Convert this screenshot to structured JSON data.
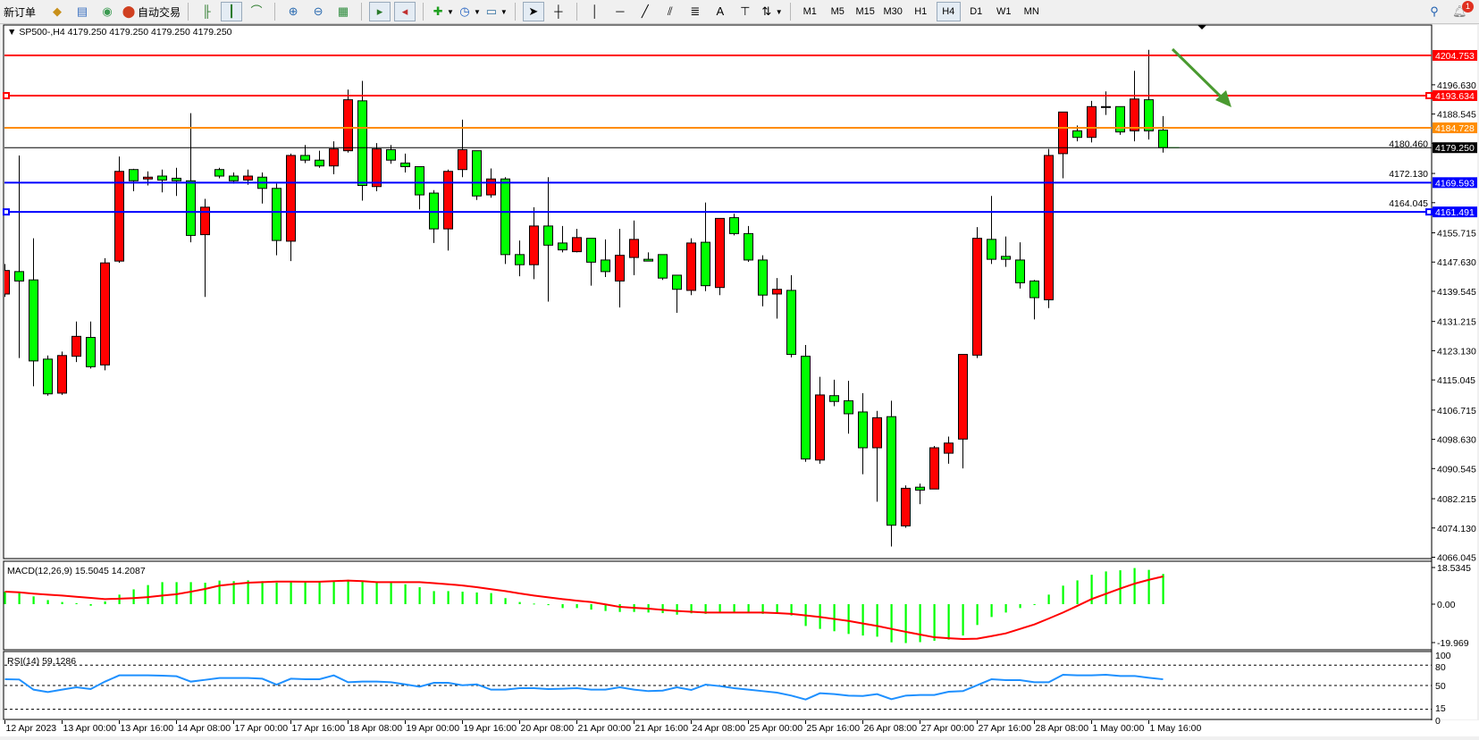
{
  "toolbar": {
    "new_order_label": "新订单",
    "auto_trading_label": "自动交易",
    "icons": [
      "market-watch-icon",
      "data-window-icon",
      "navigator-icon",
      "auto-trading-icon",
      "bar-chart-icon",
      "candlestick-icon",
      "line-chart-icon",
      "zoom-in-icon",
      "zoom-out-icon",
      "tile-windows-icon",
      "auto-scroll-icon",
      "chart-shift-icon",
      "indicators-icon",
      "periods-icon",
      "templates-icon",
      "cursor-icon",
      "crosshair-icon",
      "vertical-line-icon",
      "horizontal-line-icon",
      "trendline-icon",
      "equidistant-channel-icon",
      "fibonacci-icon",
      "text-icon",
      "text-label-icon",
      "arrows-icon"
    ],
    "text_tool_label": "A",
    "periods": [
      "M1",
      "M5",
      "M15",
      "M30",
      "H1",
      "H4",
      "D1",
      "W1",
      "MN"
    ],
    "active_period": "H4",
    "notification_count": "1"
  },
  "chart": {
    "title": "SP500-,H4  4179.250 4179.250 4179.250 4179.250",
    "colors": {
      "bull": "#ff0000",
      "bear": "#00ff00",
      "macd_hist": "#00ff00",
      "macd_signal": "#ff0000",
      "rsi": "#1e90ff",
      "arrow": "#4a9a30"
    },
    "price_ticks": [
      "4196.630",
      "4188.545",
      "4180.460",
      "4172.130",
      "4164.045",
      "4155.715",
      "4147.630",
      "4139.545",
      "4131.215",
      "4123.130",
      "4115.045",
      "4106.715",
      "4098.630",
      "4090.545",
      "4082.215",
      "4074.130",
      "4066.045"
    ],
    "horizontal_lines": [
      {
        "price": "4204.753",
        "color": "#ff0000",
        "label_text": "#ffffff",
        "selected": false
      },
      {
        "price": "4193.634",
        "color": "#ff0000",
        "label_text": "#ffffff",
        "selected": true
      },
      {
        "price": "4184.728",
        "color": "#ff8c00",
        "label_text": "#ffffff",
        "selected": false
      },
      {
        "price": "4179.250",
        "color": "#000000",
        "label_text": "#ffffff",
        "selected": false
      },
      {
        "price": "4169.593",
        "color": "#0000ff",
        "label_text": "#ffffff",
        "selected": false
      },
      {
        "price": "4161.491",
        "color": "#0000ff",
        "label_text": "#ffffff",
        "selected": true
      }
    ],
    "time_labels": [
      {
        "bar": 0,
        "text": "12 Apr 2023"
      },
      {
        "bar": 4,
        "text": "13 Apr 00:00"
      },
      {
        "bar": 8,
        "text": "13 Apr 16:00"
      },
      {
        "bar": 12,
        "text": "14 Apr 08:00"
      },
      {
        "bar": 16,
        "text": "17 Apr 00:00"
      },
      {
        "bar": 20,
        "text": "17 Apr 16:00"
      },
      {
        "bar": 24,
        "text": "18 Apr 08:00"
      },
      {
        "bar": 28,
        "text": "19 Apr 00:00"
      },
      {
        "bar": 32,
        "text": "19 Apr 16:00"
      },
      {
        "bar": 36,
        "text": "20 Apr 08:00"
      },
      {
        "bar": 40,
        "text": "21 Apr 00:00"
      },
      {
        "bar": 44,
        "text": "21 Apr 16:00"
      },
      {
        "bar": 48,
        "text": "24 Apr 08:00"
      },
      {
        "bar": 52,
        "text": "25 Apr 00:00"
      },
      {
        "bar": 56,
        "text": "25 Apr 16:00"
      },
      {
        "bar": 60,
        "text": "26 Apr 08:00"
      },
      {
        "bar": 64,
        "text": "27 Apr 00:00"
      },
      {
        "bar": 68,
        "text": "27 Apr 16:00"
      },
      {
        "bar": 72,
        "text": "28 Apr 08:00"
      },
      {
        "bar": 76,
        "text": "1 May 00:00"
      },
      {
        "bar": 80,
        "text": "1 May 16:00"
      }
    ],
    "annotation": "down-arrow-icon"
  },
  "chart_data": [
    {
      "type": "candlestick",
      "symbol": "SP500-",
      "timeframe": "H4",
      "ylim": [
        4066.045,
        4204.753
      ],
      "ohlc": [
        [
          4138.8,
          4147.1,
          4138.0,
          4145.3
        ],
        [
          4145.0,
          4177.1,
          4121.1,
          4142.4
        ],
        [
          4142.7,
          4154.2,
          4113.3,
          4120.3
        ],
        [
          4120.8,
          4121.8,
          4110.7,
          4111.2
        ],
        [
          4111.4,
          4122.9,
          4110.9,
          4121.8
        ],
        [
          4121.6,
          4131.2,
          4120.0,
          4127.1
        ],
        [
          4126.8,
          4131.2,
          4118.2,
          4118.7
        ],
        [
          4119.2,
          4148.7,
          4117.7,
          4147.4
        ],
        [
          4147.9,
          4176.8,
          4147.4,
          4172.7
        ],
        [
          4173.2,
          4173.4,
          4167.2,
          4170.1
        ],
        [
          4170.6,
          4172.7,
          4168.8,
          4171.1
        ],
        [
          4171.4,
          4173.2,
          4166.9,
          4170.3
        ],
        [
          4170.8,
          4173.7,
          4165.9,
          4170.1
        ],
        [
          4170.1,
          4188.8,
          4153.1,
          4155.0
        ],
        [
          4155.2,
          4165.1,
          4138.0,
          4162.8
        ],
        [
          4173.2,
          4173.7,
          4170.8,
          4171.4
        ],
        [
          4171.4,
          4172.4,
          4169.3,
          4170.1
        ],
        [
          4170.3,
          4173.2,
          4169.0,
          4171.4
        ],
        [
          4171.1,
          4172.4,
          4163.8,
          4168.0
        ],
        [
          4168.0,
          4169.3,
          4149.5,
          4153.6
        ],
        [
          4153.4,
          4177.6,
          4147.9,
          4177.1
        ],
        [
          4177.1,
          4180.0,
          4175.0,
          4175.8
        ],
        [
          4175.8,
          4178.4,
          4173.7,
          4174.2
        ],
        [
          4174.2,
          4181.0,
          4171.9,
          4178.9
        ],
        [
          4178.4,
          4195.3,
          4177.9,
          4192.5
        ],
        [
          4192.2,
          4197.7,
          4164.6,
          4168.8
        ],
        [
          4168.5,
          4180.5,
          4167.2,
          4178.9
        ],
        [
          4178.7,
          4180.0,
          4174.8,
          4175.8
        ],
        [
          4175.0,
          4177.6,
          4172.4,
          4174.0
        ],
        [
          4174.0,
          4174.0,
          4162.2,
          4166.2
        ],
        [
          4166.7,
          4167.5,
          4152.9,
          4156.8
        ],
        [
          4156.8,
          4173.2,
          4150.8,
          4172.7
        ],
        [
          4173.2,
          4187.0,
          4171.1,
          4178.7
        ],
        [
          4178.4,
          4178.4,
          4164.8,
          4165.9
        ],
        [
          4166.2,
          4173.5,
          4165.4,
          4170.6
        ],
        [
          4170.6,
          4171.1,
          4147.1,
          4149.7
        ],
        [
          4149.7,
          4153.6,
          4143.7,
          4146.9
        ],
        [
          4146.9,
          4162.8,
          4142.9,
          4157.6
        ],
        [
          4157.6,
          4171.1,
          4136.7,
          4152.3
        ],
        [
          4152.9,
          4157.6,
          4150.3,
          4151.0
        ],
        [
          4150.5,
          4156.8,
          4150.3,
          4154.4
        ],
        [
          4154.2,
          4154.2,
          4141.1,
          4147.6
        ],
        [
          4148.2,
          4153.9,
          4143.5,
          4145.0
        ],
        [
          4142.4,
          4156.8,
          4135.1,
          4149.5
        ],
        [
          4148.9,
          4159.1,
          4144.0,
          4153.9
        ],
        [
          4148.4,
          4150.3,
          4147.9,
          4147.9
        ],
        [
          4149.7,
          4149.7,
          4142.7,
          4143.2
        ],
        [
          4144.0,
          4144.0,
          4133.6,
          4140.1
        ],
        [
          4139.8,
          4154.2,
          4138.5,
          4152.9
        ],
        [
          4153.1,
          4164.1,
          4139.6,
          4141.1
        ],
        [
          4140.6,
          4159.7,
          4138.5,
          4159.7
        ],
        [
          4159.9,
          4161.0,
          4155.0,
          4155.5
        ],
        [
          4155.5,
          4157.6,
          4147.7,
          4148.2
        ],
        [
          4148.2,
          4149.5,
          4135.4,
          4138.5
        ],
        [
          4138.8,
          4143.2,
          4132.0,
          4140.1
        ],
        [
          4139.8,
          4144.0,
          4121.3,
          4122.1
        ],
        [
          4121.6,
          4124.7,
          4092.4,
          4093.2
        ],
        [
          4092.9,
          4115.9,
          4091.9,
          4110.9
        ],
        [
          4110.7,
          4115.1,
          4107.8,
          4109.1
        ],
        [
          4109.3,
          4114.8,
          4100.2,
          4105.7
        ],
        [
          4106.2,
          4111.4,
          4089.0,
          4096.3
        ],
        [
          4096.3,
          4106.5,
          4081.4,
          4104.6
        ],
        [
          4104.9,
          4109.3,
          4069.0,
          4074.9
        ],
        [
          4074.7,
          4085.9,
          4074.2,
          4085.1
        ],
        [
          4085.4,
          4086.4,
          4080.7,
          4084.6
        ],
        [
          4084.9,
          4096.8,
          4084.9,
          4096.3
        ],
        [
          4094.8,
          4099.4,
          4091.9,
          4097.6
        ],
        [
          4098.7,
          4122.1,
          4090.6,
          4122.1
        ],
        [
          4121.9,
          4157.3,
          4121.1,
          4154.2
        ],
        [
          4153.9,
          4165.9,
          4147.1,
          4148.4
        ],
        [
          4149.2,
          4154.7,
          4146.3,
          4148.4
        ],
        [
          4148.2,
          4153.1,
          4140.3,
          4141.9
        ],
        [
          4142.4,
          4142.7,
          4131.8,
          4137.8
        ],
        [
          4137.2,
          4178.9,
          4134.9,
          4177.1
        ],
        [
          4177.6,
          4189.1,
          4170.8,
          4189.1
        ],
        [
          4183.9,
          4185.4,
          4181.0,
          4182.1
        ],
        [
          4182.1,
          4192.2,
          4180.7,
          4190.6
        ],
        [
          4190.6,
          4194.8,
          4188.3,
          4190.6
        ],
        [
          4190.6,
          4190.6,
          4182.8,
          4183.6
        ],
        [
          4183.9,
          4200.5,
          4181.0,
          4192.7
        ],
        [
          4192.5,
          4206.3,
          4181.5,
          4183.9
        ],
        [
          4184.1,
          4188.0,
          4177.9,
          4179.25
        ]
      ]
    },
    {
      "type": "bar+line",
      "title": "MACD(12,26,9) 15.5045 14.2087",
      "ticks": [
        "18.5345",
        "0.00",
        "-19.969"
      ],
      "ylim": [
        -19.969,
        18.5345
      ],
      "histogram": [
        6.4,
        5.7,
        4.0,
        2.1,
        1.1,
        0.5,
        -0.8,
        1.4,
        4.9,
        7.6,
        9.8,
        11.3,
        11.3,
        11.3,
        11.0,
        12.1,
        11.8,
        12.2,
        11.8,
        11.0,
        11.8,
        11.8,
        11.8,
        12.1,
        12.5,
        11.8,
        11.5,
        11.0,
        10.2,
        8.7,
        6.7,
        6.7,
        6.4,
        6.0,
        5.7,
        3.1,
        1.1,
        0.3,
        -0.5,
        -2.0,
        -2.0,
        -2.8,
        -3.5,
        -4.0,
        -4.0,
        -4.3,
        -4.6,
        -5.4,
        -4.7,
        -5.0,
        -4.3,
        -4.3,
        -4.3,
        -5.0,
        -5.0,
        -5.8,
        -11.2,
        -12.7,
        -13.9,
        -15.3,
        -16.1,
        -16.7,
        -19.6,
        -19.969,
        -19.5,
        -18.8,
        -18.2,
        -16.1,
        -10.7,
        -6.6,
        -4.3,
        -2.0,
        0.0,
        4.9,
        9.5,
        12.2,
        15.1,
        16.8,
        17.4,
        18.5345,
        17.6,
        15.5045
      ],
      "signal": [
        6.4,
        6.1,
        5.4,
        4.9,
        4.4,
        3.8,
        3.2,
        2.6,
        2.8,
        3.1,
        3.6,
        4.4,
        5.1,
        6.4,
        7.8,
        9.5,
        10.3,
        11.0,
        11.3,
        11.6,
        11.6,
        11.5,
        11.5,
        11.8,
        12.1,
        11.8,
        11.3,
        11.3,
        11.3,
        11.3,
        10.8,
        10.2,
        9.6,
        8.7,
        7.7,
        6.7,
        5.5,
        4.4,
        3.5,
        2.6,
        1.8,
        1.1,
        -0.1,
        -1.4,
        -1.9,
        -2.3,
        -2.9,
        -3.5,
        -3.9,
        -4.3,
        -4.3,
        -4.3,
        -4.3,
        -4.3,
        -4.6,
        -5.0,
        -5.8,
        -6.6,
        -7.6,
        -8.6,
        -9.9,
        -11.2,
        -12.7,
        -14.2,
        -15.6,
        -17.0,
        -17.5,
        -17.9,
        -17.7,
        -16.4,
        -15.0,
        -12.7,
        -10.4,
        -7.4,
        -4.3,
        -0.9,
        2.6,
        5.3,
        8.0,
        10.5,
        12.5,
        14.2087
      ]
    },
    {
      "type": "line",
      "title": "RSI(14) 59.1286",
      "ticks": [
        "100",
        "80",
        "50",
        "15",
        "0"
      ],
      "levels": [
        80,
        50,
        15
      ],
      "ylim": [
        0,
        100
      ],
      "values": [
        59.2,
        58.8,
        43.9,
        40.3,
        43.9,
        47.3,
        44.7,
        55.7,
        64.9,
        64.9,
        64.9,
        64.5,
        63.6,
        55.7,
        58.3,
        61,
        61,
        61,
        60,
        51.3,
        60,
        59.2,
        59.2,
        64.9,
        54.8,
        55.7,
        55.7,
        54.8,
        51.7,
        48.2,
        53.9,
        53.9,
        50.4,
        51.7,
        43.9,
        43.9,
        46.1,
        46.1,
        44.7,
        45.2,
        46.1,
        43.9,
        43.9,
        47.3,
        43.9,
        41.7,
        42.5,
        47.3,
        43.4,
        51.3,
        49.1,
        46.1,
        43.9,
        41.7,
        39.5,
        35.1,
        29.4,
        38.6,
        37.3,
        35.1,
        34.6,
        37.3,
        29.8,
        35.1,
        36,
        36,
        40.8,
        41.7,
        50.4,
        59.2,
        57.9,
        57.9,
        54.8,
        54.8,
        65.8,
        64.9,
        64.9,
        65.8,
        64,
        64,
        61.4,
        59.1286
      ]
    }
  ]
}
